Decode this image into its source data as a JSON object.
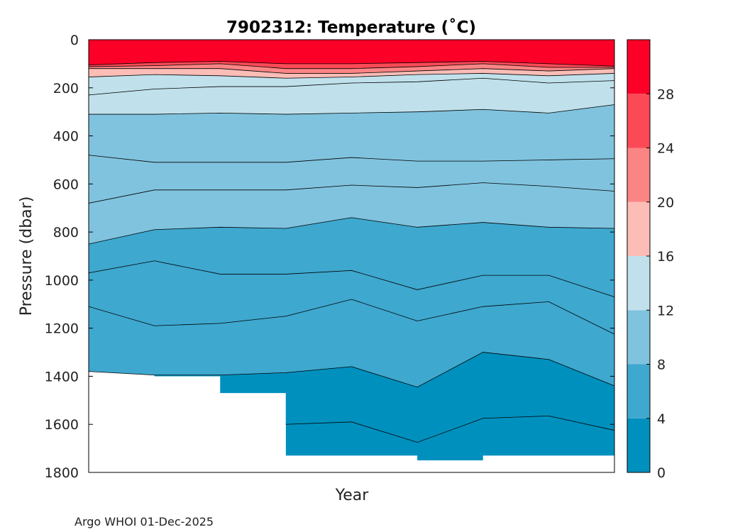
{
  "chart_data": {
    "type": "contourf",
    "title": "7902312:  Temperature (˚C)",
    "xlabel": "Year",
    "ylabel": "Pressure (dbar)",
    "ylim": [
      0,
      1800
    ],
    "y_ticks": [
      0,
      200,
      400,
      600,
      800,
      1000,
      1200,
      1400,
      1600,
      1800
    ],
    "y_tick_labels": [
      "0",
      "200",
      "400",
      "600",
      "800",
      "1000",
      "1200",
      "1400",
      "1600",
      "1800"
    ],
    "x_ticks": [],
    "colorbar": {
      "levels": [
        0,
        4,
        8,
        12,
        16,
        20,
        24,
        28,
        32
      ],
      "tick_values": [
        0,
        4,
        8,
        12,
        16,
        20,
        24,
        28
      ],
      "tick_labels": [
        "0",
        "4",
        "8",
        "12",
        "16",
        "20",
        "24",
        "28"
      ],
      "colors": [
        "#0090be",
        "#3ea8cf",
        "#80c3de",
        "#c0e1ec",
        "#fcbdb7",
        "#fb8585",
        "#fb4a56",
        "#fc0028"
      ]
    },
    "profile_count": 9,
    "bottom_pressure": [
      1380,
      1400,
      1470,
      1730,
      1730,
      1750,
      1730,
      1730,
      1750
    ],
    "isotherms": [
      {
        "temp": 2,
        "depths": [
          null,
          null,
          null,
          1600,
          1590,
          1675,
          1575,
          1565,
          1625
        ]
      },
      {
        "temp": 4,
        "depths": [
          1380,
          1395,
          1395,
          1385,
          1360,
          1445,
          1300,
          1330,
          1440
        ]
      },
      {
        "temp": 5,
        "depths": [
          1110,
          1190,
          1180,
          1150,
          1080,
          1170,
          1110,
          1090,
          1225
        ]
      },
      {
        "temp": 6,
        "depths": [
          970,
          920,
          975,
          975,
          960,
          1040,
          980,
          980,
          1070
        ]
      },
      {
        "temp": 8,
        "depths": [
          850,
          790,
          780,
          785,
          740,
          780,
          760,
          780,
          785
        ]
      },
      {
        "temp": 9,
        "depths": [
          680,
          625,
          625,
          625,
          605,
          615,
          595,
          610,
          630
        ]
      },
      {
        "temp": 10,
        "depths": [
          480,
          510,
          510,
          510,
          490,
          505,
          505,
          500,
          495
        ]
      },
      {
        "temp": 12,
        "depths": [
          310,
          310,
          305,
          310,
          305,
          300,
          290,
          305,
          270
        ]
      },
      {
        "temp": 14,
        "depths": [
          230,
          205,
          195,
          195,
          180,
          175,
          160,
          180,
          170
        ]
      },
      {
        "temp": 16,
        "depths": [
          155,
          145,
          150,
          160,
          155,
          145,
          140,
          150,
          140
        ]
      },
      {
        "temp": 20,
        "depths": [
          120,
          120,
          120,
          140,
          140,
          130,
          120,
          130,
          120
        ]
      },
      {
        "temp": 24,
        "depths": [
          112,
          108,
          100,
          120,
          120,
          112,
          100,
          115,
          115
        ]
      },
      {
        "temp": 28,
        "depths": [
          105,
          95,
          90,
          100,
          100,
          95,
          90,
          100,
          110
        ]
      }
    ],
    "surface_temp_band": "28-32"
  },
  "footer": "Argo WHOI 01-Dec-2025"
}
